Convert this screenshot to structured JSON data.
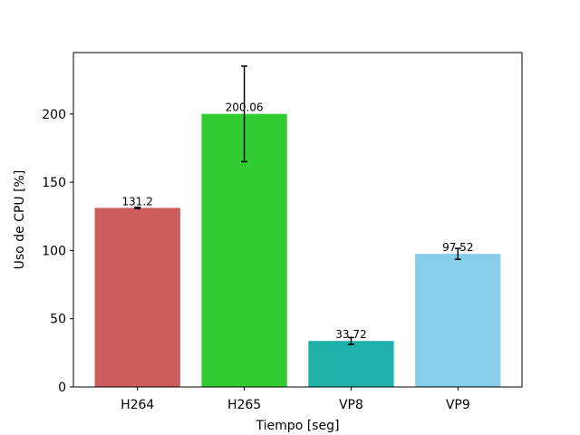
{
  "chart_data": {
    "type": "bar",
    "title": "",
    "xlabel": "Tiempo [seg]",
    "ylabel": "Uso de CPU [%]",
    "categories": [
      "H264",
      "H265",
      "VP8",
      "VP9"
    ],
    "values": [
      131.2,
      200.06,
      33.72,
      97.52
    ],
    "value_labels": [
      "131.2",
      "200.06",
      "33.72",
      "97.52"
    ],
    "errors": [
      0.5,
      35.0,
      2.5,
      4.0
    ],
    "colors": [
      "#cd5c5c",
      "#32cd32",
      "#20b2aa",
      "#87ceeb"
    ],
    "error_color": "#000000",
    "ylim": [
      0,
      245
    ],
    "yticks": [
      0,
      50,
      100,
      150,
      200
    ],
    "ytick_labels": [
      "0",
      "50",
      "100",
      "150",
      "200"
    ],
    "grid": false,
    "legend": "none"
  }
}
